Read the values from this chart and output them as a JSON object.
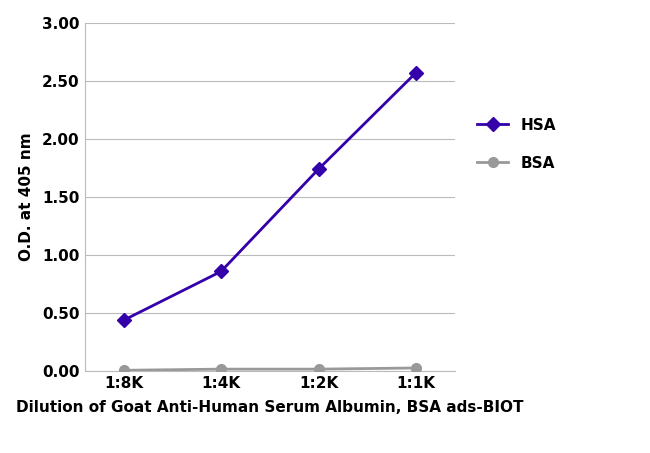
{
  "x_labels": [
    "1:8K",
    "1:4K",
    "1:2K",
    "1:1K"
  ],
  "x_values": [
    0,
    1,
    2,
    3
  ],
  "hsa_values": [
    0.44,
    0.86,
    1.74,
    2.57
  ],
  "bsa_values": [
    0.01,
    0.02,
    0.02,
    0.03
  ],
  "hsa_color": "#3300aa",
  "bsa_color": "#999999",
  "hsa_label": "HSA",
  "bsa_label": "BSA",
  "ylabel": "O.D. at 405 nm",
  "xlabel": "Dilution of Goat Anti-Human Serum Albumin, BSA ads-BIOT",
  "ylim": [
    0.0,
    3.0
  ],
  "yticks": [
    0.0,
    0.5,
    1.0,
    1.5,
    2.0,
    2.5,
    3.0
  ],
  "background_color": "#ffffff",
  "grid_color": "#bbbbbb",
  "hsa_marker": "D",
  "bsa_marker": "o",
  "marker_size": 7,
  "line_width": 2.0,
  "label_fontsize": 11,
  "tick_fontsize": 11,
  "legend_fontsize": 11
}
